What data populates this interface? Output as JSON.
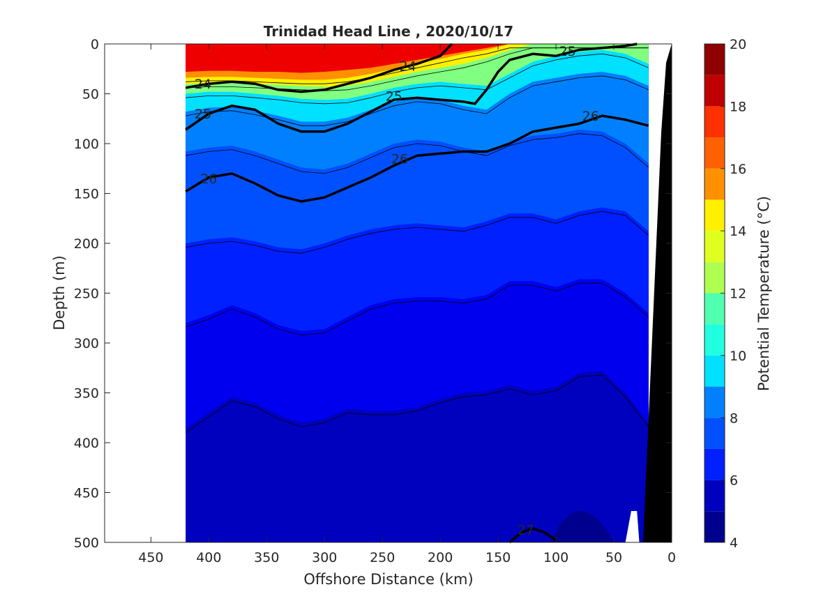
{
  "chart_data": {
    "type": "heatmap",
    "title": "Trinidad Head Line , 2020/10/17",
    "xlabel": "Offshore Distance (km)",
    "ylabel": "Depth (m)",
    "colorbar_label": "Potential Temperature (°C)",
    "xlim": [
      490,
      0
    ],
    "ylim": [
      500,
      0
    ],
    "x_reversed": true,
    "y_reversed": true,
    "x_ticks": [
      450,
      400,
      350,
      300,
      250,
      200,
      150,
      100,
      50,
      0
    ],
    "y_ticks": [
      0,
      50,
      100,
      150,
      200,
      250,
      300,
      350,
      400,
      450,
      500
    ],
    "colorbar_ticks": [
      4,
      6,
      8,
      10,
      12,
      14,
      16,
      18,
      20
    ],
    "colorbar_levels": [
      4,
      5,
      6,
      7,
      8,
      9,
      10,
      11,
      12,
      13,
      14,
      15,
      16,
      17,
      18,
      19,
      20
    ],
    "colorbar_colors": [
      "#00008F",
      "#0000BF",
      "#0000EF",
      "#0020FF",
      "#0050FF",
      "#0080FF",
      "#00B0FF",
      "#00E0FF",
      "#20FFDF",
      "#50FFAF",
      "#80FF80",
      "#AFFF50",
      "#DFFF20",
      "#FFF000",
      "#FFBF00",
      "#FF9000",
      "#FF6000",
      "#FF3000",
      "#EF0000",
      "#BF0000",
      "#8F0000"
    ],
    "data_extent_x": [
      420,
      20
    ],
    "temperature_isotherm_depths": {
      "x": [
        420,
        400,
        380,
        360,
        340,
        320,
        300,
        280,
        260,
        240,
        220,
        200,
        180,
        160,
        140,
        120,
        100,
        80,
        60,
        40,
        20
      ],
      "t18": [
        28,
        27,
        27,
        28,
        28,
        29,
        28,
        26,
        24,
        20,
        16,
        12,
        8,
        4,
        0,
        0,
        0,
        0,
        0,
        0,
        0
      ],
      "t16": [
        34,
        33,
        33,
        34,
        35,
        36,
        36,
        34,
        30,
        25,
        20,
        15,
        10,
        6,
        0,
        0,
        0,
        0,
        0,
        0,
        0
      ],
      "t14": [
        40,
        39,
        39,
        40,
        41,
        42,
        43,
        42,
        38,
        33,
        28,
        24,
        20,
        14,
        6,
        0,
        0,
        0,
        0,
        0,
        0
      ],
      "t12": [
        50,
        48,
        48,
        50,
        52,
        55,
        56,
        55,
        50,
        44,
        40,
        38,
        40,
        42,
        30,
        18,
        12,
        8,
        6,
        10,
        20
      ],
      "t10": [
        68,
        64,
        63,
        67,
        72,
        78,
        78,
        74,
        66,
        58,
        54,
        56,
        62,
        66,
        50,
        38,
        34,
        30,
        28,
        32,
        42
      ],
      "t9": [
        108,
        104,
        102,
        108,
        116,
        124,
        126,
        120,
        110,
        100,
        96,
        98,
        104,
        108,
        98,
        92,
        90,
        86,
        88,
        100,
        120
      ],
      "t8": [
        200,
        196,
        194,
        198,
        204,
        206,
        200,
        192,
        186,
        182,
        180,
        182,
        184,
        178,
        170,
        170,
        176,
        168,
        164,
        168,
        188
      ],
      "t7": [
        280,
        272,
        262,
        270,
        282,
        288,
        286,
        274,
        262,
        256,
        254,
        254,
        256,
        252,
        238,
        238,
        244,
        236,
        236,
        250,
        270
      ],
      "t6": [
        386,
        370,
        354,
        360,
        372,
        380,
        376,
        366,
        368,
        368,
        364,
        356,
        350,
        348,
        342,
        348,
        344,
        330,
        328,
        350,
        380
      ]
    },
    "contour_labels": [
      "24",
      "25",
      "26",
      "27"
    ],
    "sigma_contours": [
      {
        "label": "24",
        "x": [
          420,
          400,
          380,
          360,
          340,
          320,
          300,
          280,
          260,
          240,
          220,
          200,
          190
        ],
        "y": [
          44,
          40,
          38,
          40,
          46,
          48,
          46,
          40,
          34,
          26,
          20,
          12,
          0
        ]
      },
      {
        "label": "25",
        "x": [
          420,
          400,
          380,
          360,
          340,
          320,
          300,
          280,
          260,
          240,
          220,
          200,
          180,
          170,
          160,
          150,
          140,
          120,
          100,
          80,
          60,
          40,
          30
        ],
        "y": [
          86,
          70,
          62,
          66,
          80,
          88,
          88,
          80,
          68,
          56,
          54,
          56,
          58,
          60,
          46,
          28,
          16,
          10,
          12,
          6,
          4,
          2,
          0
        ]
      },
      {
        "label": "26",
        "x": [
          420,
          400,
          380,
          360,
          340,
          320,
          300,
          280,
          260,
          240,
          220,
          200,
          180,
          160,
          140,
          120,
          100,
          80,
          60,
          40,
          20
        ],
        "y": [
          148,
          134,
          130,
          140,
          152,
          158,
          154,
          144,
          134,
          122,
          112,
          110,
          108,
          108,
          100,
          88,
          84,
          80,
          72,
          76,
          82
        ]
      },
      {
        "label": "27",
        "x": [
          140,
          130,
          120,
          110,
          100
        ],
        "y": [
          500,
          490,
          486,
          490,
          498
        ]
      }
    ]
  }
}
